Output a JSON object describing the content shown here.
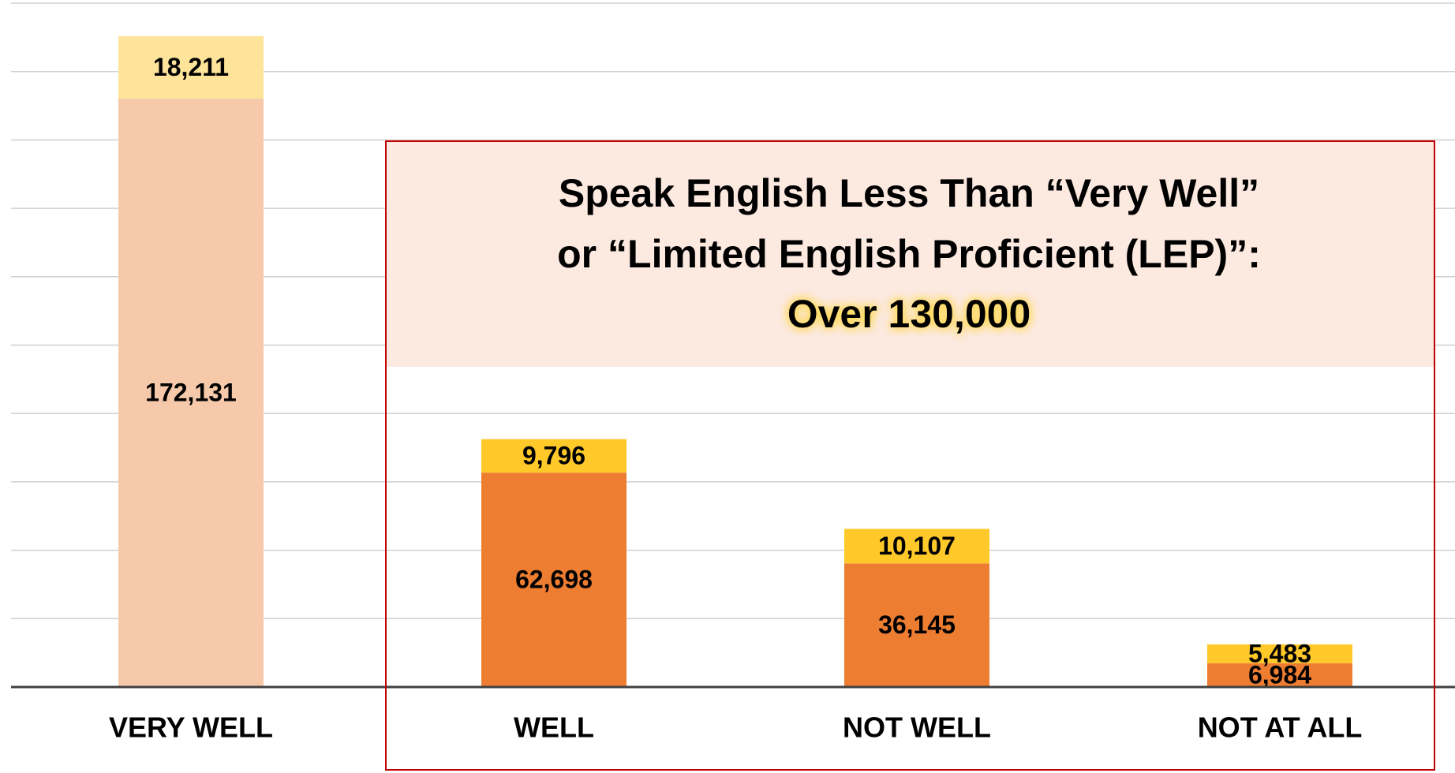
{
  "chart_data": {
    "type": "stacked_bar",
    "categories": [
      "VERY WELL",
      "WELL",
      "NOT WELL",
      "NOT AT ALL"
    ],
    "series": [
      {
        "colors": [
          "#f6c9aa",
          "#ed7d31",
          "#ed7d31",
          "#ed7d31"
        ],
        "values": [
          172131,
          62698,
          36145,
          6984
        ],
        "value_labels": [
          "172,131",
          "62,698",
          "36,145",
          "6,984"
        ]
      },
      {
        "colors": [
          "#fde49a",
          "#ffc929",
          "#ffc929",
          "#ffc929"
        ],
        "values": [
          18211,
          9796,
          10107,
          5483
        ],
        "value_labels": [
          "18,211",
          "9,796",
          "10,107",
          "5,483"
        ]
      }
    ],
    "ylim": [
      0,
      200000
    ],
    "yticks": [
      0,
      20000,
      40000,
      60000,
      80000,
      100000,
      120000,
      140000,
      160000,
      180000,
      200000
    ],
    "grid": true,
    "annotation": {
      "lines": [
        "Speak English Less Than “Very Well”",
        "or “Limited English Proficient (LEP)”:",
        "Over 130,000"
      ],
      "border_color": "#c00000",
      "fill": "#fce9e0"
    }
  }
}
